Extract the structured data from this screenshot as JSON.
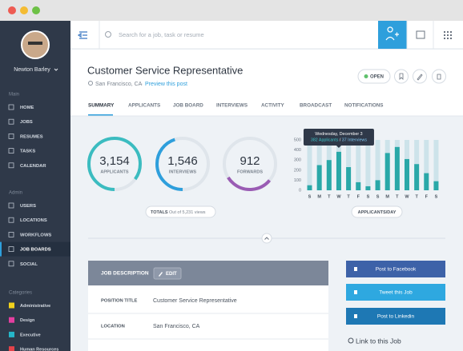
{
  "sidebar": {
    "user": "Newton Barley",
    "sections": [
      {
        "title": "Main",
        "items": [
          "HOME",
          "JOBS",
          "RESUMES",
          "TASKS",
          "CALENDAR"
        ]
      },
      {
        "title": "Admin",
        "items": [
          "USERS",
          "LOCATIONS",
          "WORKFLOWS",
          "JOB BOARDS",
          "SOCIAL"
        ]
      },
      {
        "title": "Categories",
        "items": [
          "Administrative",
          "Design",
          "Executive",
          "Human Resources"
        ]
      }
    ]
  },
  "topbar": {
    "search_placeholder": "Search for a job, task or resume"
  },
  "job": {
    "title": "Customer Service Representative",
    "location": "San Francisco, CA",
    "preview_link": "Preview this post",
    "status": "OPEN"
  },
  "tabs": [
    "SUMMARY",
    "APPLICANTS",
    "JOB BOARD",
    "INTERVIEWS",
    "ACTIVITY",
    "BROADCAST",
    "NOTIFICATIONS"
  ],
  "stats": [
    {
      "value": "3,154",
      "label": "APPLICANTS"
    },
    {
      "value": "1,546",
      "label": "INTERVIEWS"
    },
    {
      "value": "912",
      "label": "FORWARDS"
    }
  ],
  "totals": {
    "label": "TOTALS",
    "note": "Out of 5,231 views"
  },
  "chart_data": {
    "type": "bar",
    "categories": [
      "S",
      "M",
      "T",
      "W",
      "T",
      "F",
      "S",
      "S",
      "M",
      "T",
      "W",
      "T",
      "F",
      "S"
    ],
    "values": [
      50,
      250,
      300,
      382,
      230,
      80,
      40,
      100,
      370,
      430,
      310,
      260,
      170,
      90
    ],
    "color": "#2aa8a8",
    "ylim": [
      0,
      500
    ],
    "yticks": [
      0,
      100,
      200,
      300,
      400,
      500
    ],
    "tooltip": {
      "date": "Wednesday, December 3",
      "applicants": "382 Applicants",
      "interviews": "37 Interviews"
    },
    "caption": "APPLICANTS/DAY"
  },
  "description": {
    "title": "JOB DESCRIPTION",
    "edit": "EDIT",
    "rows": [
      [
        "POSITION TITLE",
        "Customer Service Representative"
      ],
      [
        "LOCATION",
        "San Francisco, CA"
      ]
    ]
  },
  "share": [
    "Post to Facebook",
    "Tweet this Job",
    "Post to Linkedin"
  ],
  "link_title": "Link to this Job"
}
